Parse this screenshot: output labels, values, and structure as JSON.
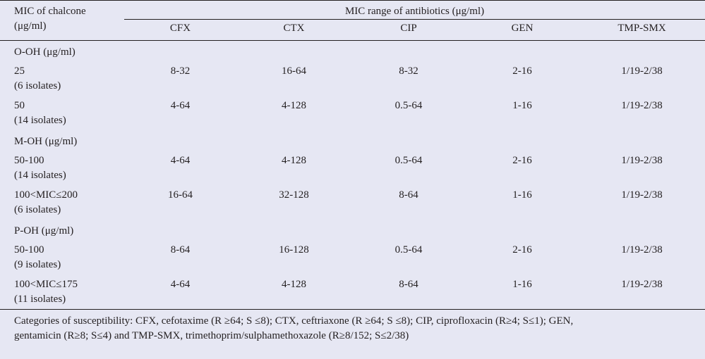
{
  "header": {
    "first_col_line1": "MIC of chalcone",
    "first_col_line2": "(μg/ml)",
    "group_title": "MIC range of antibiotics (μg/ml)",
    "columns": [
      "CFX",
      "CTX",
      "CIP",
      "GEN",
      "TMP-SMX"
    ]
  },
  "sections": [
    {
      "title": "O-OH (μg/ml)",
      "rows": [
        {
          "mic": "25",
          "isolates": "(6 isolates)",
          "values": [
            "8-32",
            "16-64",
            "8-32",
            "2-16",
            "1/19-2/38"
          ]
        },
        {
          "mic": "50",
          "isolates": "(14 isolates)",
          "values": [
            "4-64",
            "4-128",
            "0.5-64",
            "1-16",
            "1/19-2/38"
          ]
        }
      ]
    },
    {
      "title": "M-OH (μg/ml)",
      "rows": [
        {
          "mic": "50-100",
          "isolates": "(14 isolates)",
          "values": [
            "4-64",
            "4-128",
            "0.5-64",
            "2-16",
            "1/19-2/38"
          ]
        },
        {
          "mic": "100<MIC≤200",
          "isolates": "(6 isolates)",
          "values": [
            "16-64",
            "32-128",
            "8-64",
            "1-16",
            "1/19-2/38"
          ]
        }
      ]
    },
    {
      "title": "P-OH (μg/ml)",
      "rows": [
        {
          "mic": "50-100",
          "isolates": "(9 isolates)",
          "values": [
            "8-64",
            "16-128",
            "0.5-64",
            "2-16",
            "1/19-2/38"
          ]
        },
        {
          "mic": "100<MIC≤175",
          "isolates": "(11 isolates)",
          "values": [
            "4-64",
            "4-128",
            "8-64",
            "1-16",
            "1/19-2/38"
          ]
        }
      ]
    }
  ],
  "footnote": {
    "line1": "Categories of susceptibility: CFX, cefotaxime (R ≥64; S ≤8); CTX, ceftriaxone (R ≥64; S ≤8); CIP, ciprofloxacin (R≥4; S≤1); GEN,",
    "line2": "gentamicin (R≥8; S≤4) and TMP-SMX, trimethoprim/sulphamethoxazole (R≥8/152; S≤2/38)"
  }
}
